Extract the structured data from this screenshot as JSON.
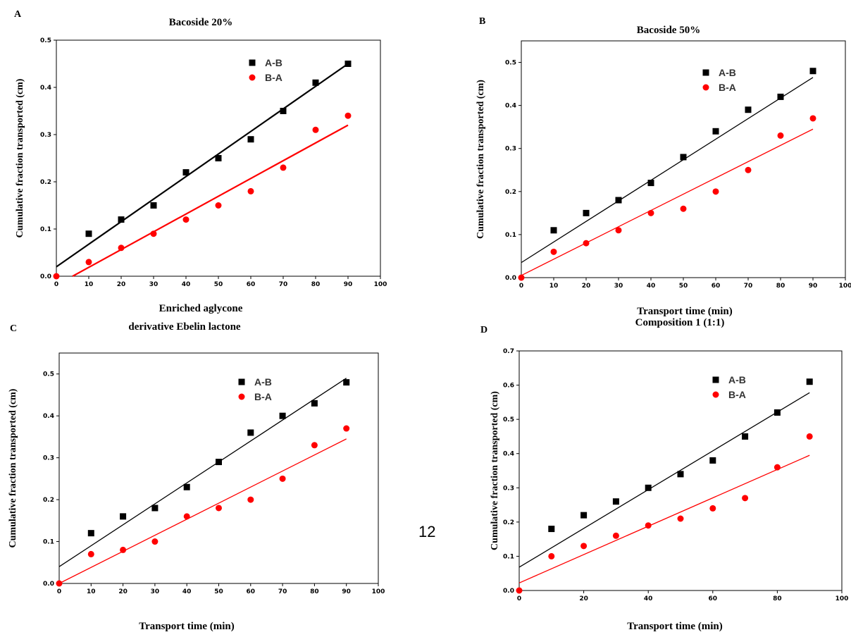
{
  "page_number": "12",
  "colors": {
    "series_ab": "#000000",
    "series_ba": "#ff0000"
  },
  "chart_data": [
    {
      "panel": "A",
      "type": "scatter",
      "title": "Bacoside 20%",
      "xlabel": "Enriched aglycone",
      "ylabel": "Cumulative fraction transported (cm)",
      "xlim": [
        0,
        100
      ],
      "ylim": [
        0,
        0.5
      ],
      "xticks": [
        0,
        10,
        20,
        30,
        40,
        50,
        60,
        70,
        80,
        90,
        100
      ],
      "yticks": [
        0.0,
        0.1,
        0.2,
        0.3,
        0.4,
        0.5
      ],
      "legend_position": "top-right",
      "series": [
        {
          "name": "A-B",
          "marker": "square",
          "color": "#000000",
          "x": [
            10,
            20,
            30,
            40,
            50,
            60,
            70,
            80,
            90
          ],
          "y": [
            0.09,
            0.12,
            0.15,
            0.22,
            0.25,
            0.29,
            0.35,
            0.41,
            0.45
          ],
          "fit": {
            "x": [
              0,
              90
            ],
            "y": [
              0.02,
              0.45
            ]
          }
        },
        {
          "name": "B-A",
          "marker": "circle",
          "color": "#ff0000",
          "x": [
            0,
            10,
            20,
            30,
            40,
            50,
            60,
            70,
            80,
            90
          ],
          "y": [
            0.0,
            0.03,
            0.06,
            0.09,
            0.12,
            0.15,
            0.18,
            0.23,
            0.31,
            0.34
          ],
          "fit": {
            "x": [
              5,
              90
            ],
            "y": [
              0.0,
              0.32
            ]
          }
        }
      ]
    },
    {
      "panel": "B",
      "type": "scatter",
      "title": "Bacoside 50%",
      "xlabel": "Transport time (min)",
      "ylabel": "Cumulative fraction transported (cm)",
      "xlim": [
        0,
        100
      ],
      "ylim": [
        0,
        0.55
      ],
      "xticks": [
        0,
        10,
        20,
        30,
        40,
        50,
        60,
        70,
        80,
        90,
        100
      ],
      "yticks": [
        0.0,
        0.1,
        0.2,
        0.3,
        0.4,
        0.5
      ],
      "legend_position": "top-left",
      "series": [
        {
          "name": "A-B",
          "marker": "square",
          "color": "#000000",
          "x": [
            10,
            20,
            30,
            40,
            50,
            60,
            70,
            80,
            90
          ],
          "y": [
            0.11,
            0.15,
            0.18,
            0.22,
            0.28,
            0.34,
            0.39,
            0.42,
            0.48
          ],
          "fit": {
            "x": [
              0,
              90
            ],
            "y": [
              0.035,
              0.465
            ]
          }
        },
        {
          "name": "B-A",
          "marker": "circle",
          "color": "#ff0000",
          "x": [
            0,
            10,
            20,
            30,
            40,
            50,
            60,
            70,
            80,
            90
          ],
          "y": [
            0.0,
            0.06,
            0.08,
            0.11,
            0.15,
            0.16,
            0.2,
            0.25,
            0.33,
            0.37
          ],
          "fit": {
            "x": [
              0,
              90
            ],
            "y": [
              0.005,
              0.345
            ]
          }
        }
      ]
    },
    {
      "panel": "C",
      "type": "scatter",
      "title": "derivative Ebelin lactone",
      "xlabel": "Transport time (min)",
      "ylabel": "Cumulative fraction transported (cm)",
      "xlim": [
        0,
        100
      ],
      "ylim": [
        0,
        0.55
      ],
      "xticks": [
        0,
        10,
        20,
        30,
        40,
        50,
        60,
        70,
        80,
        90,
        100
      ],
      "yticks": [
        0.0,
        0.1,
        0.2,
        0.3,
        0.4,
        0.5
      ],
      "legend_position": "top-right",
      "series": [
        {
          "name": "A-B",
          "marker": "square",
          "color": "#000000",
          "x": [
            10,
            20,
            30,
            40,
            50,
            60,
            70,
            80,
            90
          ],
          "y": [
            0.12,
            0.16,
            0.18,
            0.23,
            0.29,
            0.36,
            0.4,
            0.43,
            0.48
          ],
          "fit": {
            "x": [
              0,
              90
            ],
            "y": [
              0.04,
              0.49
            ]
          }
        },
        {
          "name": "B-A",
          "marker": "circle",
          "color": "#ff0000",
          "x": [
            0,
            10,
            20,
            30,
            40,
            50,
            60,
            70,
            80,
            90
          ],
          "y": [
            0.0,
            0.07,
            0.08,
            0.1,
            0.16,
            0.18,
            0.2,
            0.25,
            0.33,
            0.37
          ],
          "fit": {
            "x": [
              0,
              90
            ],
            "y": [
              0.0,
              0.345
            ]
          }
        }
      ]
    },
    {
      "panel": "D",
      "type": "scatter",
      "title": "Composition 1 (1:1)",
      "xlabel": "Transport time (min)",
      "ylabel": "Cumulative fraction transported (cm)",
      "xlim": [
        0,
        100
      ],
      "ylim": [
        0,
        0.7
      ],
      "xticks": [
        0,
        20,
        40,
        60,
        80,
        100
      ],
      "yticks": [
        0.0,
        0.1,
        0.2,
        0.3,
        0.4,
        0.5,
        0.6,
        0.7
      ],
      "legend_position": "top-right",
      "series": [
        {
          "name": "A-B",
          "marker": "square",
          "color": "#000000",
          "x": [
            10,
            20,
            30,
            40,
            50,
            60,
            70,
            80,
            90
          ],
          "y": [
            0.18,
            0.22,
            0.26,
            0.3,
            0.34,
            0.38,
            0.45,
            0.52,
            0.61
          ],
          "fit": {
            "x": [
              0,
              90
            ],
            "y": [
              0.068,
              0.578
            ]
          }
        },
        {
          "name": "B-A",
          "marker": "circle",
          "color": "#ff0000",
          "x": [
            0,
            10,
            20,
            30,
            40,
            50,
            60,
            70,
            80,
            90
          ],
          "y": [
            0.0,
            0.1,
            0.13,
            0.16,
            0.19,
            0.21,
            0.24,
            0.27,
            0.36,
            0.45
          ],
          "fit": {
            "x": [
              0,
              90
            ],
            "y": [
              0.022,
              0.395
            ]
          }
        }
      ]
    }
  ]
}
